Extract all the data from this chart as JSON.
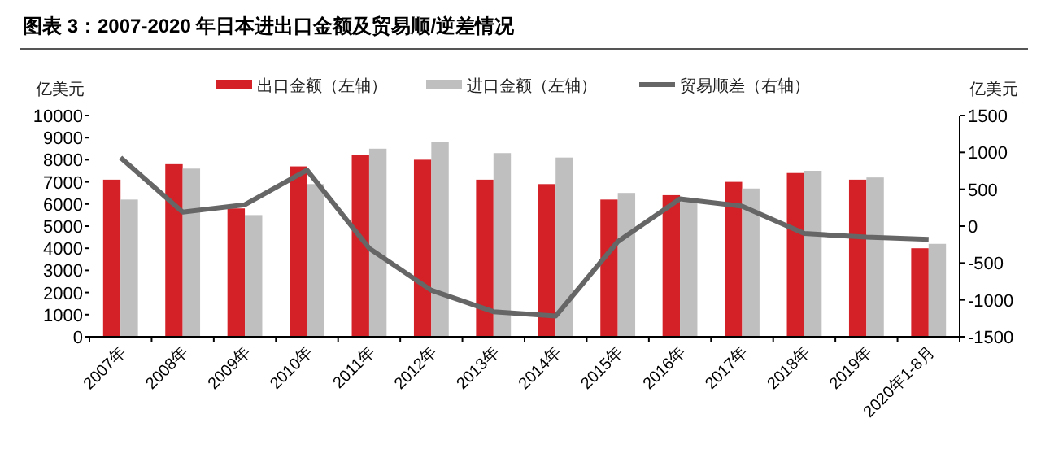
{
  "chart_data": {
    "type": "bar",
    "title": "图表 3：2007-2020 年日本进出口金额及贸易顺/逆差情况",
    "ylabel": "亿美元",
    "y2label": "亿美元",
    "categories": [
      "2007年",
      "2008年",
      "2009年",
      "2010年",
      "2011年",
      "2012年",
      "2013年",
      "2014年",
      "2015年",
      "2016年",
      "2017年",
      "2018年",
      "2019年",
      "2020年1-8月"
    ],
    "series": [
      {
        "name": "出口金额（左轴）",
        "color": "#d42027",
        "values": [
          7100,
          7800,
          5800,
          7700,
          8200,
          8000,
          7100,
          6900,
          6200,
          6400,
          7000,
          7400,
          7100,
          4000
        ]
      },
      {
        "name": "进口金额（左轴）",
        "color": "#bfbfbf",
        "values": [
          6200,
          7600,
          5500,
          6900,
          8500,
          8800,
          8300,
          8100,
          6500,
          6100,
          6700,
          7500,
          7200,
          4200
        ]
      },
      {
        "name": "贸易顺差（右轴）",
        "type": "line",
        "axis": "y2",
        "color": "#666666",
        "values": [
          930,
          190,
          290,
          760,
          -300,
          -870,
          -1160,
          -1220,
          -210,
          370,
          270,
          -100,
          -150,
          -180
        ]
      }
    ],
    "ylim": [
      0,
      10000
    ],
    "yticks": [
      0,
      1000,
      2000,
      3000,
      4000,
      5000,
      6000,
      7000,
      8000,
      9000,
      10000
    ],
    "y2lim": [
      -1500,
      1500
    ],
    "y2ticks": [
      -1500,
      -1000,
      -500,
      0,
      500,
      1000,
      1500
    ],
    "grid": false,
    "legend": "top",
    "marker": "none",
    "line_style": "solid"
  }
}
